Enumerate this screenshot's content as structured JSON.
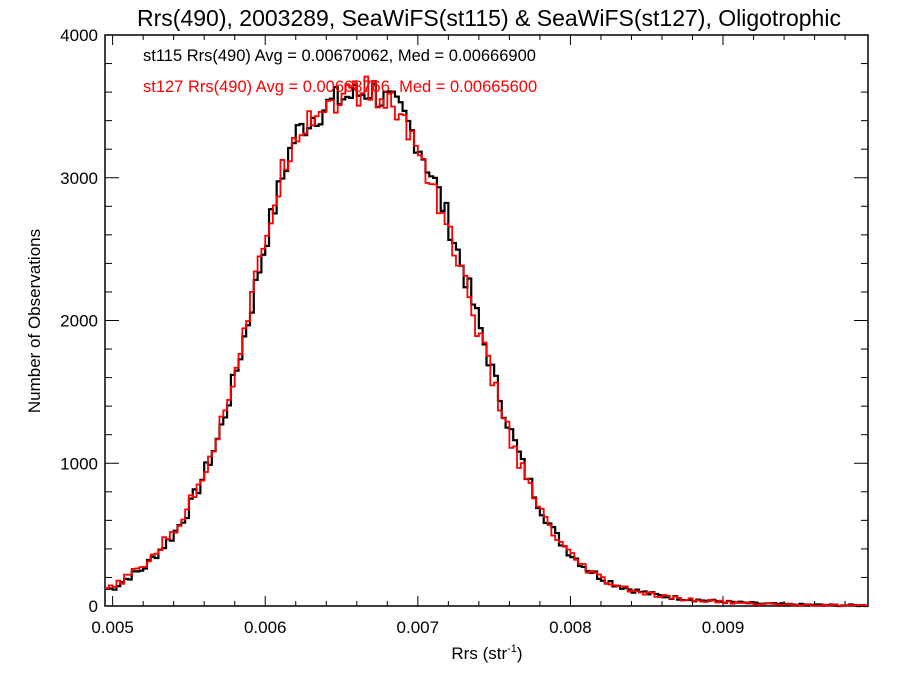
{
  "chart_data": {
    "type": "line",
    "title": "Rrs(490), 2003289, SeaWiFS(st115) & SeaWiFS(st127), Oligotrophic",
    "xlabel": "Rrs (str",
    "xlabel_sup": "-1",
    "xlabel_close": ")",
    "ylabel": "Number of Observations",
    "xlim": [
      0.00495,
      0.00995
    ],
    "ylim": [
      0,
      4000
    ],
    "xticks": [
      0.005,
      0.006,
      0.007,
      0.008,
      0.009
    ],
    "xtick_labels": [
      "0.005",
      "0.006",
      "0.007",
      "0.008",
      "0.009"
    ],
    "yticks": [
      0,
      1000,
      2000,
      3000,
      4000
    ],
    "ytick_labels": [
      "0",
      "1000",
      "2000",
      "3000",
      "4000"
    ],
    "grid": false,
    "annotations": [
      "st115 Rrs(490) Avg = 0.00670062, Med = 0.00666900",
      "st127 Rrs(490) Avg = 0.00668766, Med = 0.00665600"
    ],
    "series": [
      {
        "name": "st115",
        "color": "#000000",
        "step": "histogram",
        "x": [
          0.005,
          0.0051,
          0.0052,
          0.0053,
          0.0054,
          0.0055,
          0.0056,
          0.0057,
          0.0058,
          0.0059,
          0.006,
          0.0061,
          0.00615,
          0.0062,
          0.0063,
          0.0064,
          0.0065,
          0.0066,
          0.0067,
          0.00675,
          0.0068,
          0.0069,
          0.007,
          0.0071,
          0.0072,
          0.0073,
          0.0074,
          0.0075,
          0.0076,
          0.0077,
          0.0078,
          0.0079,
          0.008,
          0.0081,
          0.0082,
          0.0083,
          0.0084,
          0.0085,
          0.0086,
          0.0088,
          0.009,
          0.0092,
          0.0094,
          0.0096,
          0.0098,
          0.00995
        ],
        "y": [
          120,
          200,
          260,
          380,
          500,
          680,
          920,
          1200,
          1600,
          2050,
          2550,
          2950,
          3150,
          3300,
          3420,
          3500,
          3560,
          3580,
          3620,
          3560,
          3540,
          3440,
          3250,
          3000,
          2700,
          2350,
          1980,
          1600,
          1250,
          950,
          700,
          500,
          370,
          270,
          200,
          150,
          115,
          90,
          70,
          45,
          30,
          18,
          12,
          8,
          5,
          3
        ]
      },
      {
        "name": "st127",
        "color": "#ff0000",
        "step": "histogram",
        "x": [
          0.005,
          0.0051,
          0.0052,
          0.0053,
          0.0054,
          0.0055,
          0.0056,
          0.0057,
          0.0058,
          0.0059,
          0.006,
          0.0061,
          0.00615,
          0.0062,
          0.0063,
          0.0064,
          0.0065,
          0.0066,
          0.0067,
          0.00675,
          0.0068,
          0.0069,
          0.007,
          0.0071,
          0.0072,
          0.0073,
          0.0074,
          0.0075,
          0.0076,
          0.0077,
          0.0078,
          0.0079,
          0.008,
          0.0081,
          0.0082,
          0.0083,
          0.0084,
          0.0085,
          0.0086,
          0.0088,
          0.009,
          0.0092,
          0.0094,
          0.0096,
          0.0098,
          0.00995
        ],
        "y": [
          125,
          210,
          275,
          400,
          520,
          700,
          950,
          1230,
          1640,
          2080,
          2580,
          2980,
          3180,
          3320,
          3430,
          3510,
          3570,
          3590,
          3620,
          3550,
          3520,
          3410,
          3210,
          2950,
          2640,
          2290,
          1920,
          1540,
          1200,
          910,
          670,
          480,
          350,
          260,
          190,
          140,
          110,
          85,
          65,
          42,
          28,
          16,
          11,
          7,
          4,
          3
        ]
      }
    ]
  }
}
